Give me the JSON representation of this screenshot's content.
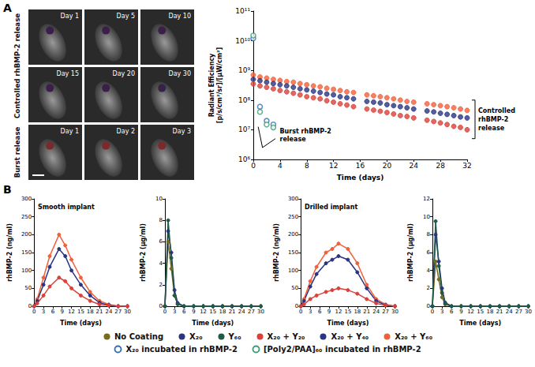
{
  "panel_labels": [
    "A",
    "B"
  ],
  "images": {
    "rows": [
      {
        "label": "Controlled rhBMP-2 release",
        "days": [
          "Day 1",
          "Day 5",
          "Day 10",
          "Day 15",
          "Day 20",
          "Day 30"
        ]
      },
      {
        "label": "Burst release",
        "days": [
          "Day 1",
          "Day 2",
          "Day 3"
        ]
      }
    ]
  },
  "legend_entries": [
    {
      "name": "No Coating",
      "color": "#7a6a1e",
      "marker": "circle"
    },
    {
      "name": "X₂₀",
      "color": "#2b3481",
      "marker": "circle"
    },
    {
      "name": "Y₆₀",
      "color": "#1e5c49",
      "marker": "circle"
    },
    {
      "name": "X₂₀ + Y₂₀",
      "color": "#d9413a",
      "marker": "circle"
    },
    {
      "name": "X₂₀ + Y₄₀",
      "color": "#2b3481",
      "marker": "circle"
    },
    {
      "name": "X₂₀ + Y₆₀",
      "color": "#f2603b",
      "marker": "circle"
    },
    {
      "name": "X₂₀ incubated in rhBMP-2",
      "color": "#2f6db5",
      "marker": "open_circle"
    },
    {
      "name": "[Poly2/PAA]₆₀ incubated in rhBMP-2",
      "color": "#3b9a72",
      "marker": "open_circle"
    }
  ],
  "chart_data": [
    {
      "type": "scatter",
      "log": "y",
      "grid": false,
      "x_label": "Time (days)",
      "y_label": "Radiant Efficiency [p/s/cm²/sr]/[µW/cm²]",
      "xlim": [
        0,
        32
      ],
      "xticks": [
        0,
        4,
        8,
        12,
        16,
        20,
        24,
        28,
        32
      ],
      "ylim": [
        1000000.0,
        100000000000.0
      ],
      "yticks": [
        {
          "value": 1000000.0,
          "label": "10⁶"
        },
        {
          "value": 10000000.0,
          "label": "10⁷"
        },
        {
          "value": 100000000.0,
          "label": "10⁸"
        },
        {
          "value": 1000000000.0,
          "label": "10⁹"
        },
        {
          "value": 10000000000.0,
          "label": "10¹⁰"
        },
        {
          "value": 100000000000.0,
          "label": "10¹¹"
        }
      ],
      "annotations": [
        "Burst rhBMP-2 release",
        "Controlled rhBMP-2 release"
      ],
      "series": [
        {
          "name": "X₂₀ + Y₆₀",
          "color": "#f2603b",
          "marker": "circle",
          "x": [
            0,
            1,
            2,
            3,
            4,
            5,
            6,
            7,
            8,
            9,
            10,
            11,
            12,
            13,
            14,
            15,
            17,
            18,
            19,
            20,
            21,
            22,
            23,
            24,
            26,
            27,
            28,
            29,
            30,
            31,
            32
          ],
          "values": [
            700000000.0,
            600000000.0,
            550000000.0,
            500000000.0,
            460000000.0,
            420000000.0,
            400000000.0,
            360000000.0,
            330000000.0,
            300000000.0,
            280000000.0,
            250000000.0,
            230000000.0,
            210000000.0,
            190000000.0,
            180000000.0,
            150000000.0,
            140000000.0,
            130000000.0,
            120000000.0,
            110000000.0,
            100000000.0,
            90000000.0,
            85000000.0,
            75000000.0,
            70000000.0,
            65000000.0,
            60000000.0,
            55000000.0,
            50000000.0,
            45000000.0
          ]
        },
        {
          "name": "X₂₀ + Y₄₀",
          "color": "#2b3481",
          "marker": "circle",
          "x": [
            0,
            1,
            2,
            3,
            4,
            5,
            6,
            7,
            8,
            9,
            10,
            11,
            12,
            13,
            14,
            15,
            17,
            18,
            19,
            20,
            21,
            22,
            23,
            24,
            26,
            27,
            28,
            29,
            30,
            31,
            32
          ],
          "values": [
            500000000.0,
            450000000.0,
            400000000.0,
            360000000.0,
            330000000.0,
            300000000.0,
            270000000.0,
            240000000.0,
            220000000.0,
            200000000.0,
            180000000.0,
            160000000.0,
            150000000.0,
            130000000.0,
            120000000.0,
            110000000.0,
            90000000.0,
            85000000.0,
            80000000.0,
            70000000.0,
            65000000.0,
            60000000.0,
            55000000.0,
            50000000.0,
            43000000.0,
            40000000.0,
            36000000.0,
            33000000.0,
            30000000.0,
            27000000.0,
            25000000.0
          ]
        },
        {
          "name": "X₂₀ + Y₂₀",
          "color": "#d9413a",
          "marker": "circle",
          "x": [
            0,
            1,
            2,
            3,
            4,
            5,
            6,
            7,
            8,
            9,
            10,
            11,
            12,
            13,
            14,
            15,
            17,
            18,
            19,
            20,
            21,
            22,
            23,
            24,
            26,
            27,
            28,
            29,
            30,
            31,
            32
          ],
          "values": [
            350000000.0,
            300000000.0,
            270000000.0,
            240000000.0,
            210000000.0,
            190000000.0,
            170000000.0,
            150000000.0,
            130000000.0,
            120000000.0,
            110000000.0,
            95000000.0,
            85000000.0,
            75000000.0,
            68000000.0,
            60000000.0,
            50000000.0,
            46000000.0,
            42000000.0,
            38000000.0,
            34000000.0,
            30000000.0,
            28000000.0,
            25000000.0,
            21000000.0,
            19000000.0,
            17000000.0,
            15000000.0,
            13000000.0,
            12000000.0,
            10000000.0
          ]
        },
        {
          "name": "X₂₀ incubated in rhBMP-2",
          "color": "#2f6db5",
          "marker": "open_circle",
          "x": [
            0,
            1,
            2,
            3
          ],
          "values": [
            12000000000.0,
            60000000.0,
            20000000.0,
            15000000.0
          ]
        },
        {
          "name": "[Poly2/PAA]₆₀ incubated in rhBMP-2",
          "color": "#3b9a72",
          "marker": "open_circle",
          "x": [
            0,
            1,
            2,
            3
          ],
          "values": [
            15000000000.0,
            40000000.0,
            15000000.0,
            12000000.0
          ]
        }
      ]
    },
    {
      "type": "line",
      "grid": false,
      "title": "Smooth implant",
      "x_label": "Time (days)",
      "y_label": "rhBMP-2 (ng/ml)",
      "xlim": [
        0,
        30
      ],
      "xticks": [
        0,
        3,
        6,
        9,
        12,
        15,
        18,
        21,
        24,
        27,
        30
      ],
      "ylim": [
        0,
        300
      ],
      "yticks": [
        0,
        50,
        100,
        150,
        200,
        250,
        300
      ],
      "series": [
        {
          "name": "X₂₀ + Y₆₀",
          "color": "#f2603b",
          "marker": "circle",
          "x": [
            0,
            1,
            3,
            5,
            8,
            10,
            12,
            15,
            18,
            21,
            24,
            27,
            30
          ],
          "values": [
            0,
            20,
            80,
            140,
            200,
            170,
            130,
            80,
            40,
            15,
            5,
            0,
            0
          ]
        },
        {
          "name": "X₂₀ + Y₄₀",
          "color": "#2b3481",
          "marker": "circle",
          "x": [
            0,
            1,
            3,
            5,
            8,
            10,
            12,
            15,
            18,
            21,
            24,
            27,
            30
          ],
          "values": [
            0,
            15,
            60,
            110,
            160,
            140,
            100,
            60,
            30,
            10,
            3,
            0,
            0
          ]
        },
        {
          "name": "X₂₀ + Y₂₀",
          "color": "#d9413a",
          "marker": "circle",
          "x": [
            0,
            1,
            3,
            5,
            8,
            10,
            12,
            15,
            18,
            21,
            24,
            27,
            30
          ],
          "values": [
            0,
            8,
            30,
            55,
            80,
            70,
            50,
            30,
            15,
            5,
            2,
            0,
            0
          ]
        }
      ]
    },
    {
      "type": "line",
      "grid": false,
      "x_label": "Time (days)",
      "y_label": "rhBMP-2 (µg/ml)",
      "xlim": [
        0,
        30
      ],
      "xticks": [
        0,
        3,
        6,
        9,
        12,
        15,
        18,
        21,
        24,
        27,
        30
      ],
      "ylim": [
        0,
        10
      ],
      "yticks": [
        0,
        2,
        4,
        6,
        8,
        10
      ],
      "series": [
        {
          "name": "No Coating",
          "color": "#7a6a1e",
          "marker": "circle",
          "x": [
            0,
            1,
            2,
            3,
            4,
            6,
            9,
            12,
            15,
            18,
            21,
            24,
            27,
            30
          ],
          "values": [
            0,
            6,
            3.5,
            1,
            0.2,
            0,
            0,
            0,
            0,
            0,
            0,
            0,
            0,
            0
          ]
        },
        {
          "name": "X₂₀",
          "color": "#2b3481",
          "marker": "circle",
          "x": [
            0,
            1,
            2,
            3,
            4,
            6,
            9,
            12,
            15,
            18,
            21,
            24,
            27,
            30
          ],
          "values": [
            0,
            7,
            5,
            1.5,
            0.3,
            0,
            0,
            0,
            0,
            0,
            0,
            0,
            0,
            0
          ]
        },
        {
          "name": "Y₆₀",
          "color": "#1e5c49",
          "marker": "circle",
          "x": [
            0,
            1,
            2,
            3,
            4,
            6,
            9,
            12,
            15,
            18,
            21,
            24,
            27,
            30
          ],
          "values": [
            0,
            8,
            4.5,
            1,
            0.2,
            0,
            0,
            0,
            0,
            0,
            0,
            0,
            0,
            0
          ]
        }
      ]
    },
    {
      "type": "line",
      "grid": false,
      "title": "Drilled implant",
      "x_label": "Time (days)",
      "y_label": "rhBMP-2 (ng/ml)",
      "xlim": [
        0,
        30
      ],
      "xticks": [
        0,
        3,
        6,
        9,
        12,
        15,
        18,
        21,
        24,
        27,
        30
      ],
      "ylim": [
        0,
        300
      ],
      "yticks": [
        0,
        50,
        100,
        150,
        200,
        250,
        300
      ],
      "series": [
        {
          "name": "X₂₀ + Y₆₀",
          "color": "#f2603b",
          "marker": "circle",
          "x": [
            0,
            1,
            3,
            5,
            8,
            10,
            12,
            15,
            18,
            21,
            24,
            27,
            30
          ],
          "values": [
            0,
            20,
            70,
            110,
            150,
            160,
            175,
            160,
            120,
            60,
            20,
            5,
            0
          ]
        },
        {
          "name": "X₂₀ + Y₄₀",
          "color": "#2b3481",
          "marker": "circle",
          "x": [
            0,
            1,
            3,
            5,
            8,
            10,
            12,
            15,
            18,
            21,
            24,
            27,
            30
          ],
          "values": [
            0,
            15,
            55,
            90,
            120,
            130,
            140,
            130,
            95,
            50,
            15,
            3,
            0
          ]
        },
        {
          "name": "X₂₀ + Y₂₀",
          "color": "#d9413a",
          "marker": "circle",
          "x": [
            0,
            1,
            3,
            5,
            8,
            10,
            12,
            15,
            18,
            21,
            24,
            27,
            30
          ],
          "values": [
            0,
            5,
            20,
            30,
            40,
            45,
            50,
            45,
            35,
            20,
            8,
            2,
            0
          ]
        }
      ]
    },
    {
      "type": "line",
      "grid": false,
      "x_label": "Time (days)",
      "y_label": "rhBMP-2 (µg/ml)",
      "xlim": [
        0,
        30
      ],
      "xticks": [
        0,
        3,
        6,
        9,
        12,
        15,
        18,
        21,
        24,
        27,
        30
      ],
      "ylim": [
        0,
        12
      ],
      "yticks": [
        0,
        2,
        4,
        6,
        8,
        10,
        12
      ],
      "series": [
        {
          "name": "No Coating",
          "color": "#7a6a1e",
          "marker": "circle",
          "x": [
            0,
            1,
            2,
            3,
            4,
            6,
            9,
            12,
            15,
            18,
            21,
            24,
            27,
            30
          ],
          "values": [
            0,
            5,
            3,
            1,
            0.2,
            0,
            0,
            0,
            0,
            0,
            0,
            0,
            0,
            0
          ]
        },
        {
          "name": "X₂₀",
          "color": "#2b3481",
          "marker": "circle",
          "x": [
            0,
            1,
            2,
            3,
            4,
            6,
            9,
            12,
            15,
            18,
            21,
            24,
            27,
            30
          ],
          "values": [
            0,
            8,
            5,
            2,
            0.4,
            0,
            0,
            0,
            0,
            0,
            0,
            0,
            0,
            0
          ]
        },
        {
          "name": "Y₆₀",
          "color": "#1e5c49",
          "marker": "circle",
          "x": [
            0,
            1,
            2,
            3,
            4,
            6,
            9,
            12,
            15,
            18,
            21,
            24,
            27,
            30
          ],
          "values": [
            0,
            9.5,
            4.5,
            1.5,
            0.3,
            0,
            0,
            0,
            0,
            0,
            0,
            0,
            0,
            0
          ]
        }
      ]
    }
  ]
}
